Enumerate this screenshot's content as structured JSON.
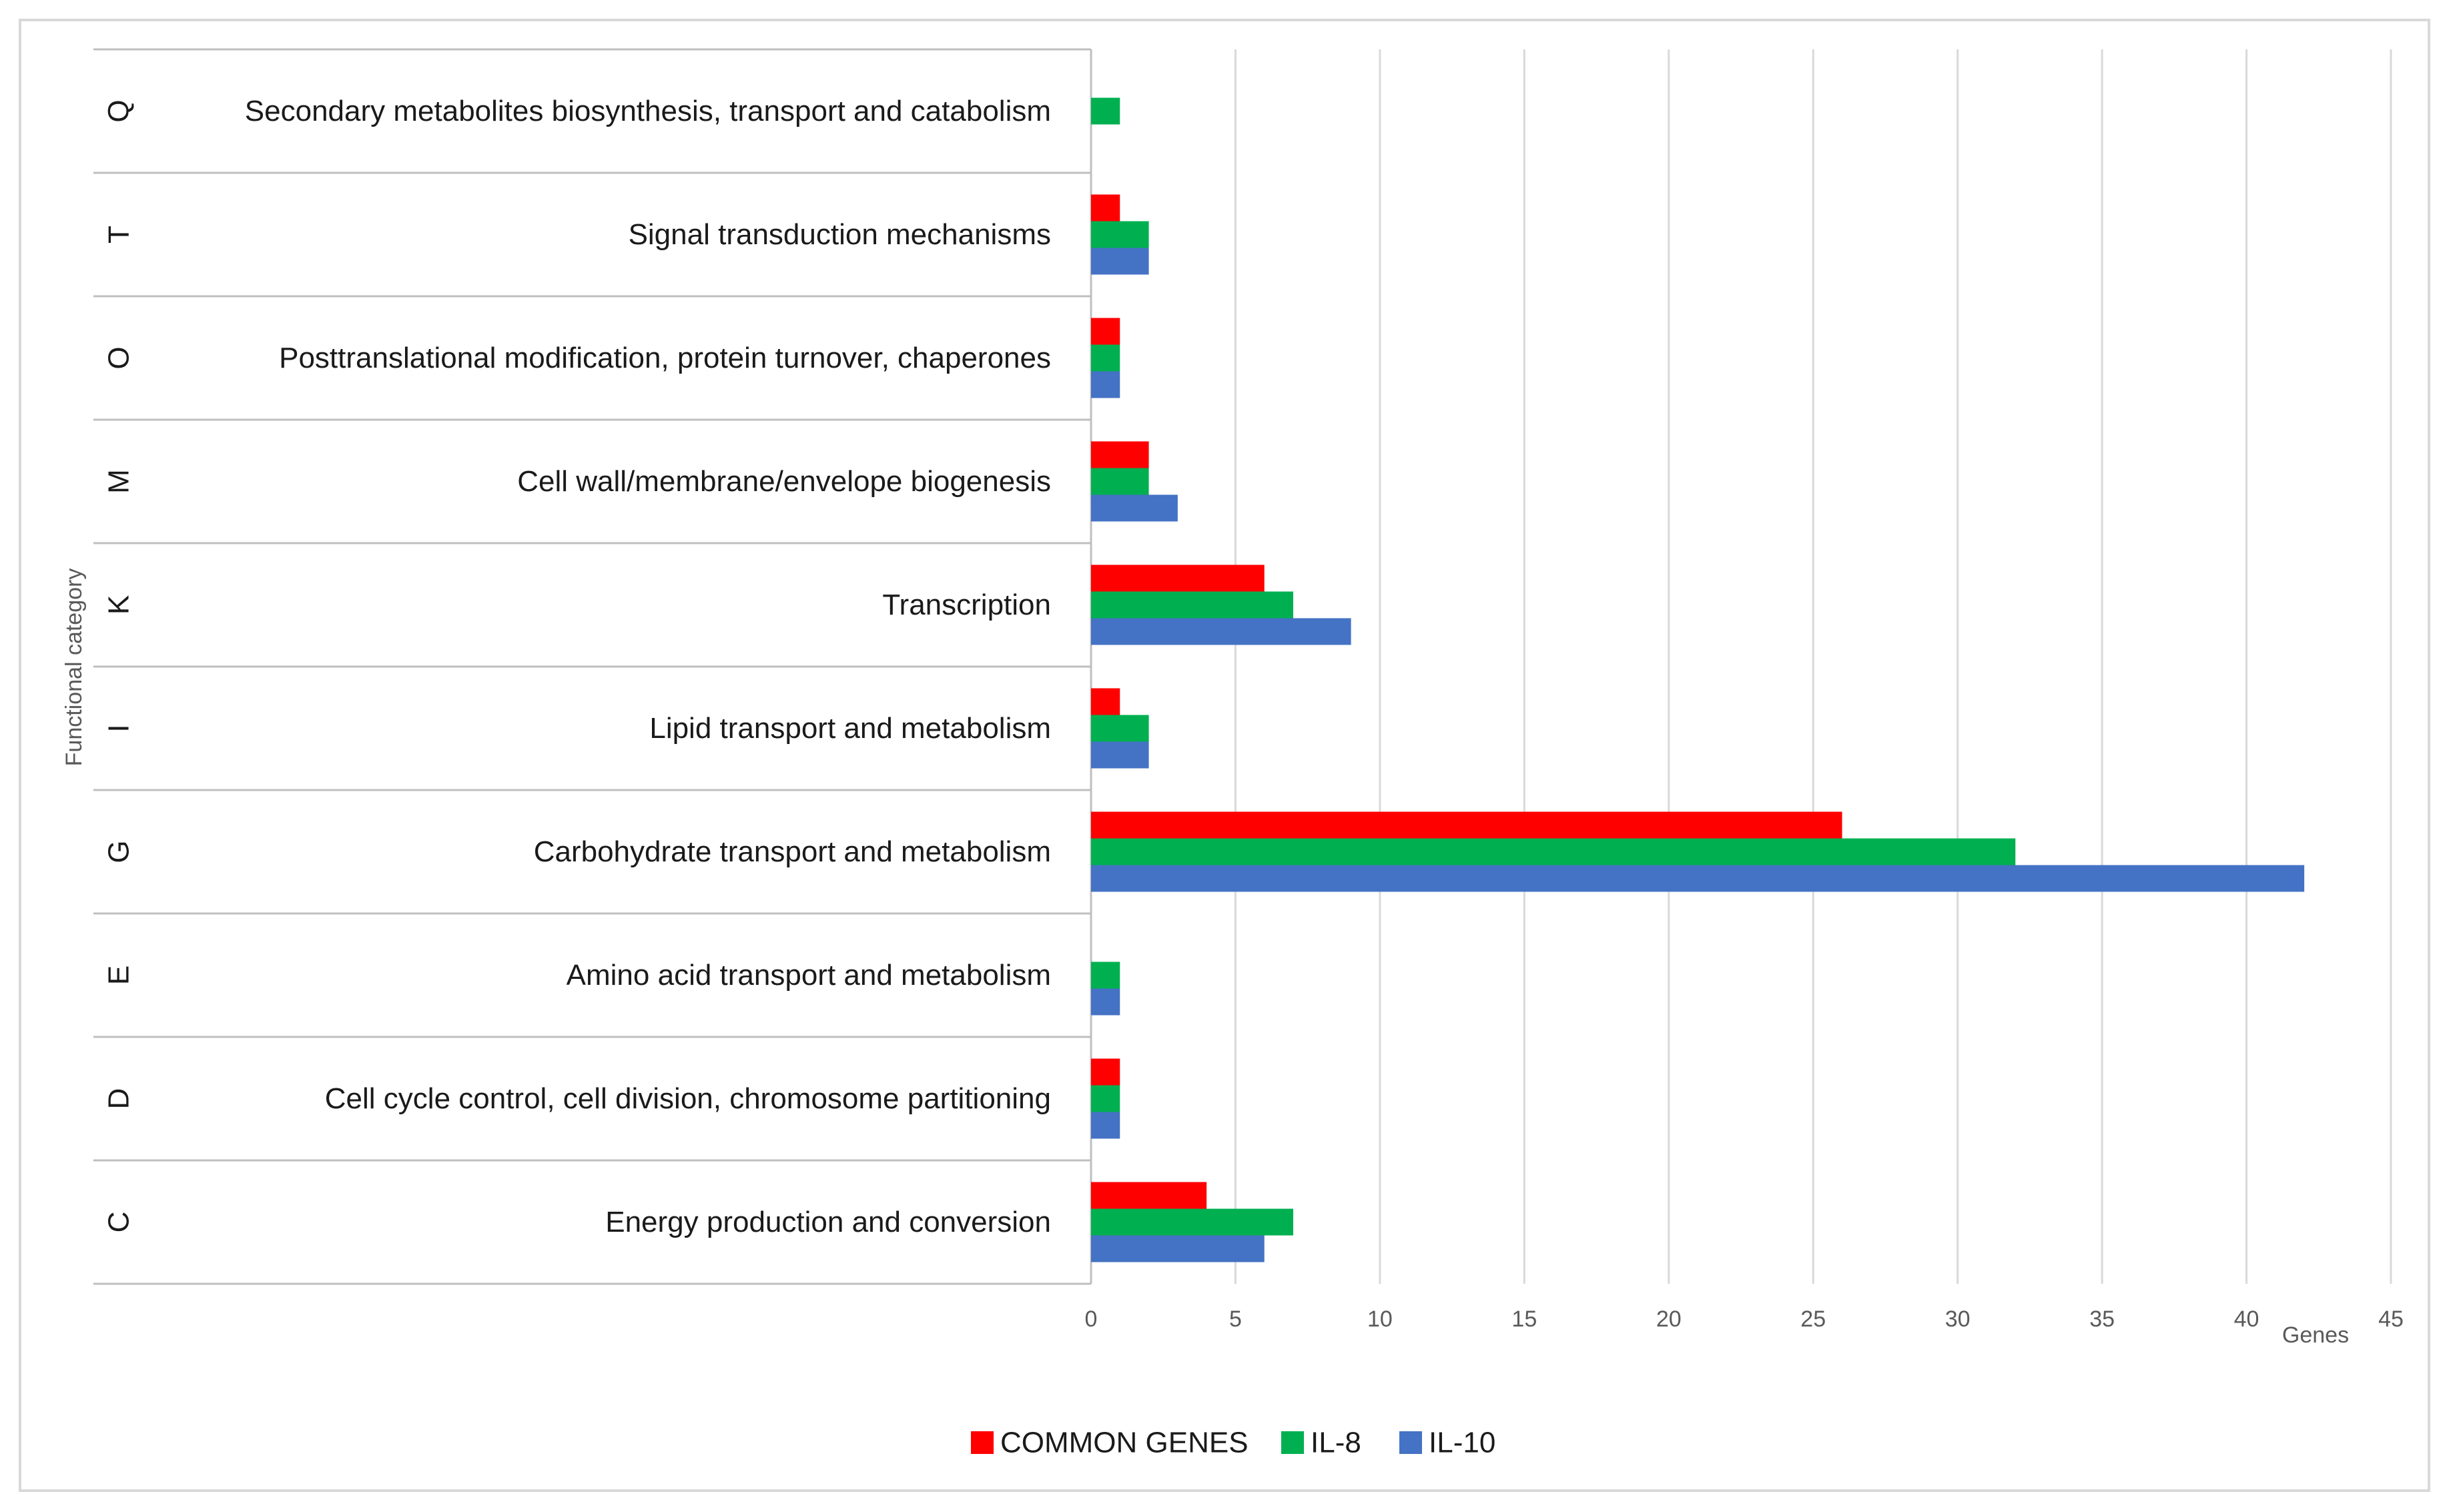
{
  "chart_data": {
    "type": "bar",
    "orientation": "horizontal",
    "xlabel": "Genes",
    "ylabel": "Functional category",
    "xlim": [
      0,
      45
    ],
    "x_ticks": [
      0,
      5,
      10,
      15,
      20,
      25,
      30,
      35,
      40,
      45
    ],
    "grid": true,
    "legend_position": "bottom",
    "categories": [
      {
        "code": "Q",
        "name": "Secondary metabolites biosynthesis, transport and catabolism"
      },
      {
        "code": "T",
        "name": "Signal transduction mechanisms"
      },
      {
        "code": "O",
        "name": "Posttranslational modification, protein turnover, chaperones"
      },
      {
        "code": "M",
        "name": "Cell wall/membrane/envelope biogenesis"
      },
      {
        "code": "K",
        "name": "Transcription"
      },
      {
        "code": "I",
        "name": "Lipid transport and metabolism"
      },
      {
        "code": "G",
        "name": "Carbohydrate transport and metabolism"
      },
      {
        "code": "E",
        "name": "Amino acid transport and metabolism"
      },
      {
        "code": "D",
        "name": "Cell cycle control, cell division, chromosome partitioning"
      },
      {
        "code": "C",
        "name": "Energy production and conversion"
      }
    ],
    "series": [
      {
        "name": "COMMON GENES",
        "color": "#ff0000",
        "values": [
          0,
          1,
          1,
          2,
          6,
          1,
          26,
          0,
          1,
          4
        ]
      },
      {
        "name": "IL-8",
        "color": "#00b050",
        "values": [
          1,
          2,
          1,
          2,
          7,
          2,
          32,
          1,
          1,
          7
        ]
      },
      {
        "name": "IL-10",
        "color": "#4472c4",
        "values": [
          0,
          2,
          1,
          3,
          9,
          2,
          42,
          1,
          1,
          6
        ]
      }
    ]
  }
}
